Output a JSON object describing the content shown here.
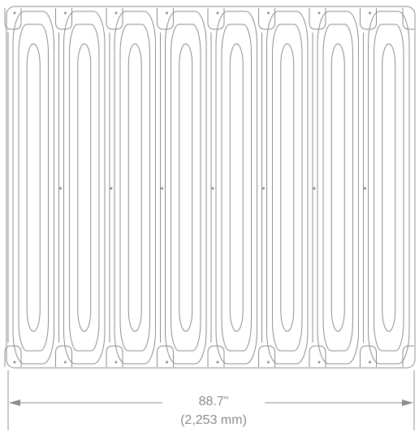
{
  "drawing": {
    "panel_count": 8,
    "line_color": "#8c8c8c",
    "dimension": {
      "imperial": "88.7\"",
      "metric": "(2,253 mm)"
    }
  }
}
